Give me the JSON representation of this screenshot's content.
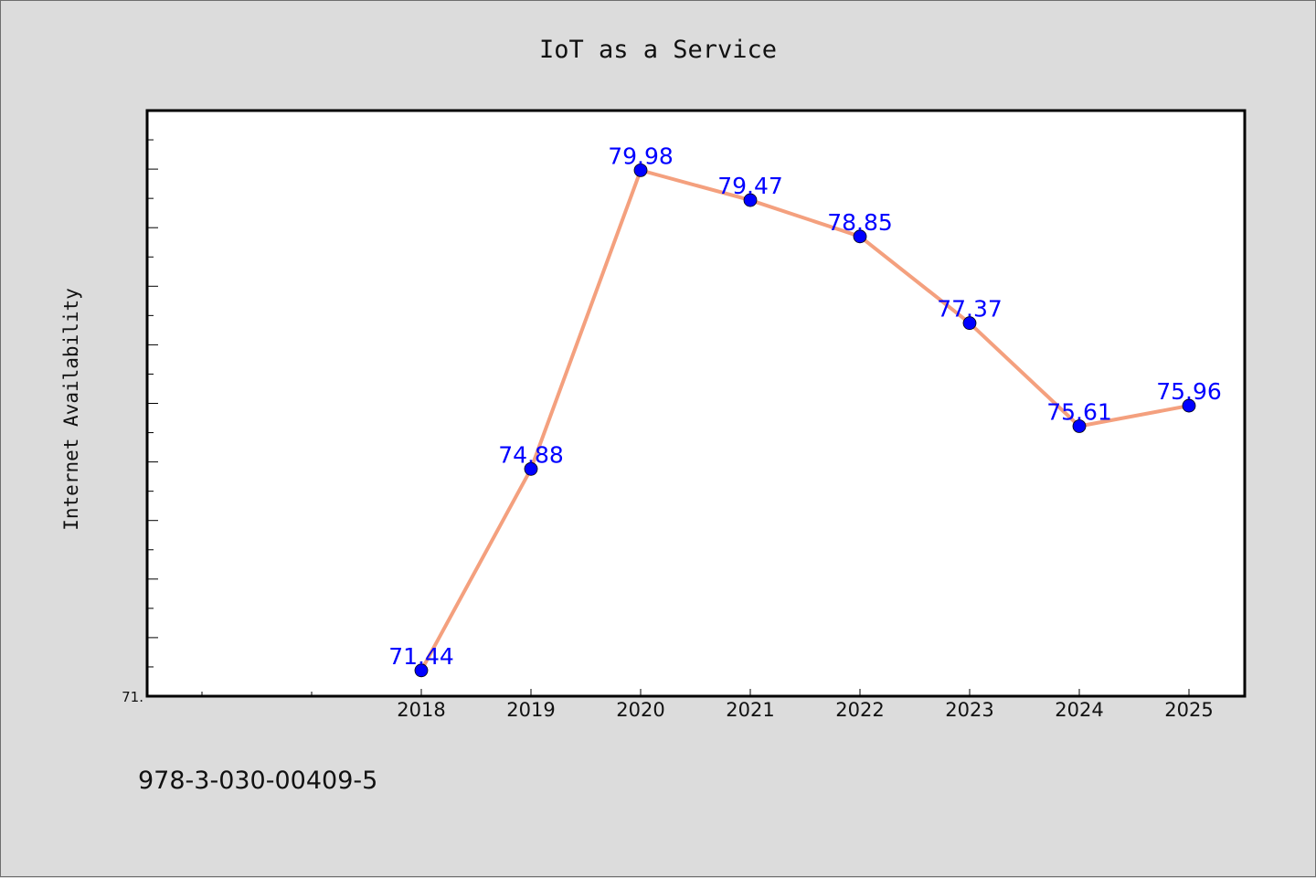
{
  "chart_data": {
    "type": "line",
    "title": "IoT as a Service",
    "xlabel": "",
    "ylabel": "Internet Availability",
    "categories": [
      "2018",
      "2019",
      "2020",
      "2021",
      "2022",
      "2023",
      "2024",
      "2025"
    ],
    "series": [
      {
        "values": [
          71.44,
          74.88,
          79.98,
          79.47,
          78.85,
          77.37,
          75.61,
          75.96
        ],
        "data_labels": [
          "71.44",
          "74.88",
          "79.98",
          "79.47",
          "78.85",
          "77.37",
          "75.61",
          "75.96"
        ],
        "line_color": "#f4a07e",
        "marker_color": "#0000ff"
      }
    ],
    "y_tick_labels": [
      {
        "value": 71.0,
        "label": "71."
      }
    ],
    "ylim": [
      71.0,
      81.0
    ],
    "grid": false,
    "legend": "none"
  },
  "footer": {
    "isbn": "978-3-030-00409-5"
  },
  "colors": {
    "background": "#dcdcdc",
    "plot_background": "#ffffff",
    "axis": "#000000",
    "data_label": "#0000ff"
  }
}
